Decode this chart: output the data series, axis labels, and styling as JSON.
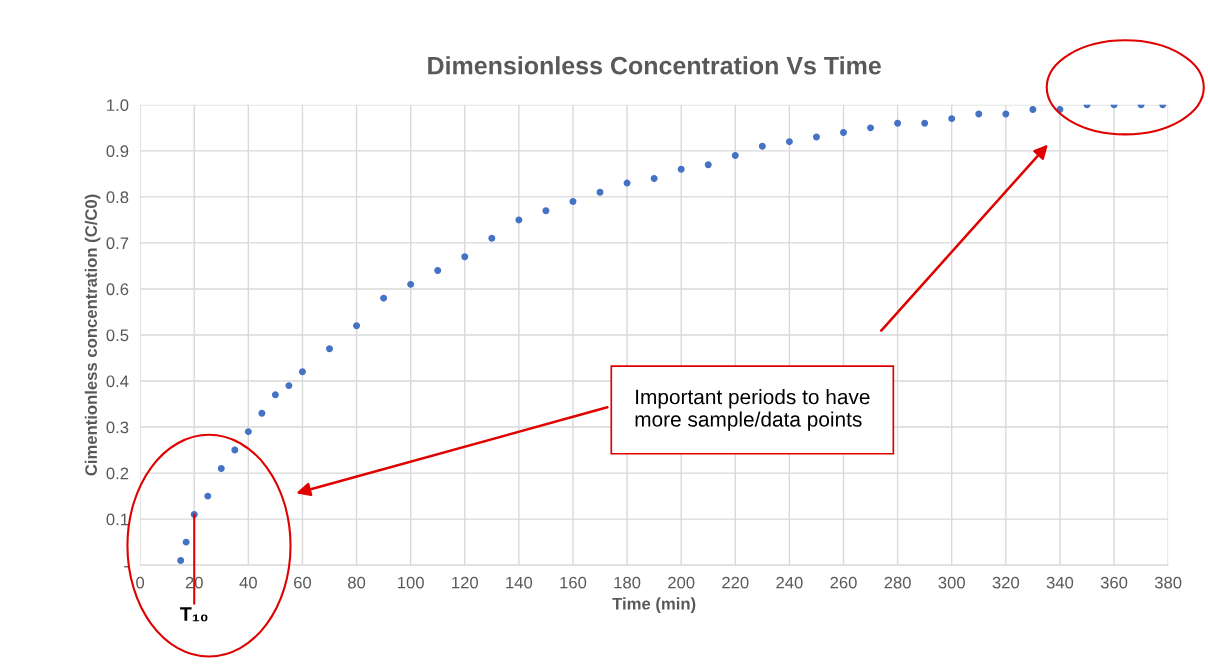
{
  "chart_data": {
    "type": "scatter",
    "title": "Dimensionless Concentration Vs Time",
    "xlabel": "Time (min)",
    "ylabel": "Cimentionless concentration (C/C0)",
    "x": [
      15,
      17,
      20,
      25,
      30,
      35,
      40,
      45,
      50,
      55,
      60,
      70,
      80,
      90,
      100,
      110,
      120,
      130,
      140,
      150,
      160,
      170,
      180,
      190,
      200,
      210,
      220,
      230,
      240,
      250,
      260,
      270,
      280,
      290,
      300,
      310,
      320,
      330,
      340,
      350,
      360,
      370,
      378
    ],
    "series": [
      {
        "color": "#4472c4",
        "values": [
          0.01,
          0.05,
          0.11,
          0.15,
          0.21,
          0.25,
          0.29,
          0.33,
          0.37,
          0.39,
          0.42,
          0.47,
          0.52,
          0.58,
          0.61,
          0.64,
          0.67,
          0.71,
          0.75,
          0.77,
          0.79,
          0.81,
          0.83,
          0.84,
          0.86,
          0.87,
          0.89,
          0.91,
          0.92,
          0.93,
          0.94,
          0.95,
          0.96,
          0.96,
          0.97,
          0.98,
          0.98,
          0.99,
          0.99,
          1.0,
          1.0,
          1.0,
          1.0
        ]
      }
    ],
    "xlim": [
      0,
      380
    ],
    "xticks": [
      0,
      20,
      40,
      60,
      80,
      100,
      120,
      140,
      160,
      180,
      200,
      220,
      240,
      260,
      280,
      300,
      320,
      340,
      360,
      380
    ],
    "ylim": [
      0,
      1.0
    ],
    "yticks": [
      {
        "value": 0,
        "label": "-"
      },
      0.1,
      0.2,
      0.3,
      0.4,
      0.5,
      0.6,
      0.7,
      0.8,
      0.9,
      {
        "value": 1.0,
        "label": "1.0"
      }
    ],
    "grid": true,
    "marker": "circle",
    "annotations": [
      {
        "text": "T₁₀",
        "x": 20,
        "y": 0.11
      },
      "Important periods to have more sample/data points"
    ]
  }
}
